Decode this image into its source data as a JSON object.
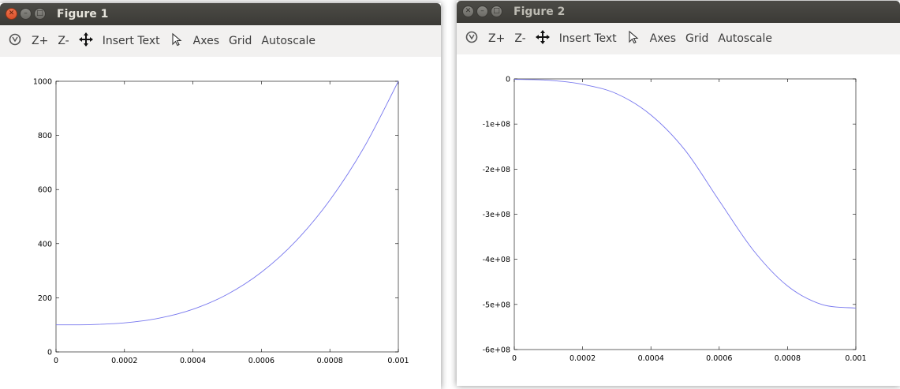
{
  "toolbar": {
    "zoom_in": "Z+",
    "zoom_out": "Z-",
    "insert_text": "Insert Text",
    "axes": "Axes",
    "grid": "Grid",
    "autoscale": "Autoscale",
    "icons": [
      "rotate-icon",
      "pan-icon",
      "pointer-icon"
    ]
  },
  "windows": [
    {
      "title": "Figure 1",
      "active": true,
      "chart_data": {
        "type": "line",
        "title": "",
        "xlabel": "",
        "ylabel": "",
        "xlim": [
          0,
          0.001
        ],
        "ylim": [
          0,
          1000
        ],
        "xticks": [
          "0",
          "0.0002",
          "0.0004",
          "0.0006",
          "0.0008",
          "0.001"
        ],
        "yticks": [
          "0",
          "200",
          "400",
          "600",
          "800",
          "1000"
        ],
        "line_color": "#7777ee",
        "grid": false,
        "series": [
          {
            "x": [
              0,
              0.0001,
              0.0002,
              0.0003,
              0.0004,
              0.0005,
              0.0006,
              0.0007,
              0.0008,
              0.0009,
              0.001
            ],
            "values": [
              100,
              100.9,
              107.2,
              124.3,
              157.6,
              212.5,
              294.4,
              408.7,
              560.8,
              756.1,
              1000
            ]
          }
        ]
      }
    },
    {
      "title": "Figure 2",
      "active": false,
      "chart_data": {
        "type": "line",
        "title": "",
        "xlabel": "",
        "ylabel": "",
        "xlim": [
          0,
          0.001
        ],
        "ylim": [
          -600000000,
          0
        ],
        "xticks": [
          "0",
          "0.0002",
          "0.0004",
          "0.0006",
          "0.0008",
          "0.001"
        ],
        "yticks": [
          "0",
          "-1e+08",
          "-2e+08",
          "-3e+08",
          "-4e+08",
          "-5e+08",
          "-6e+08"
        ],
        "line_color": "#7777ee",
        "grid": false,
        "series": [
          {
            "x": [
              0,
              0.0001,
              0.0002,
              0.0003,
              0.0004,
              0.0005,
              0.0006,
              0.0007,
              0.0008,
              0.0009,
              0.001
            ],
            "values": [
              -1000000,
              -3000000,
              -12000000,
              -33000000,
              -80000000,
              -158000000,
              -270000000,
              -380000000,
              -459000000,
              -500000000,
              -508000000
            ]
          }
        ]
      }
    }
  ]
}
